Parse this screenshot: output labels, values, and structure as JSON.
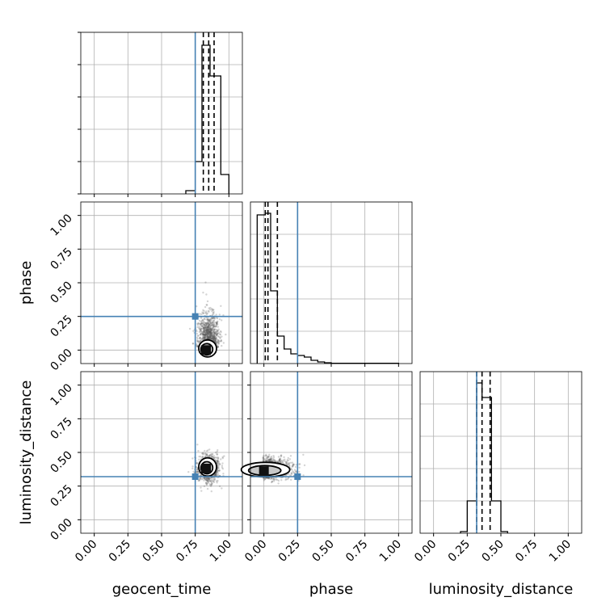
{
  "chart_data": {
    "type": "corner",
    "parameters": [
      "geocent_time",
      "phase",
      "luminosity_distance"
    ],
    "axis_labels": {
      "x": [
        "geocent_time",
        "phase",
        "luminosity_distance"
      ],
      "y": [
        "phase",
        "luminosity_distance"
      ]
    },
    "range": [
      0.0,
      1.0
    ],
    "ticks": [
      "0.00",
      "0.25",
      "0.50",
      "0.75",
      "1.00"
    ],
    "grid": true,
    "colors": {
      "truth": "#4682b4",
      "hist": "#000000",
      "quantile": "#000000",
      "samples": "#555555"
    },
    "truths": {
      "geocent_time": 0.75,
      "phase": 0.25,
      "luminosity_distance": 0.32
    },
    "histograms": [
      {
        "param": "geocent_time",
        "bins": [
          0.68,
          0.75,
          0.8,
          0.86,
          0.94,
          1.0
        ],
        "heights": [
          0.02,
          0.2,
          0.92,
          0.73,
          0.12
        ],
        "quantiles": [
          0.81,
          0.85,
          0.89
        ]
      },
      {
        "param": "phase",
        "bins": [
          -0.05,
          0.01,
          0.05,
          0.1,
          0.15,
          0.2,
          0.25,
          0.3,
          0.35,
          0.4,
          0.45,
          0.5,
          1.0
        ],
        "heights": [
          0.92,
          0.93,
          0.45,
          0.17,
          0.09,
          0.06,
          0.05,
          0.04,
          0.02,
          0.01,
          0.005,
          0.002
        ],
        "quantiles": [
          0.01,
          0.03,
          0.1
        ]
      },
      {
        "param": "luminosity_distance",
        "bins": [
          0.2,
          0.25,
          0.32,
          0.36,
          0.43,
          0.5,
          0.55
        ],
        "heights": [
          0.01,
          0.2,
          0.93,
          0.84,
          0.2,
          0.01
        ],
        "quantiles": [
          0.32,
          0.36,
          0.42
        ]
      }
    ],
    "scatter_panels": [
      {
        "x": "geocent_time",
        "y": "phase",
        "center": [
          0.85,
          0.06
        ],
        "spread": [
          0.04,
          0.12
        ],
        "density_peak": [
          0.83,
          0.0
        ]
      },
      {
        "x": "geocent_time",
        "y": "luminosity_distance",
        "center": [
          0.85,
          0.38
        ],
        "spread": [
          0.04,
          0.05
        ],
        "density_peak": [
          0.83,
          0.38
        ]
      },
      {
        "x": "phase",
        "y": "luminosity_distance",
        "center": [
          0.06,
          0.38
        ],
        "spread": [
          0.1,
          0.04
        ],
        "density_peak": [
          0.0,
          0.36
        ]
      }
    ]
  }
}
